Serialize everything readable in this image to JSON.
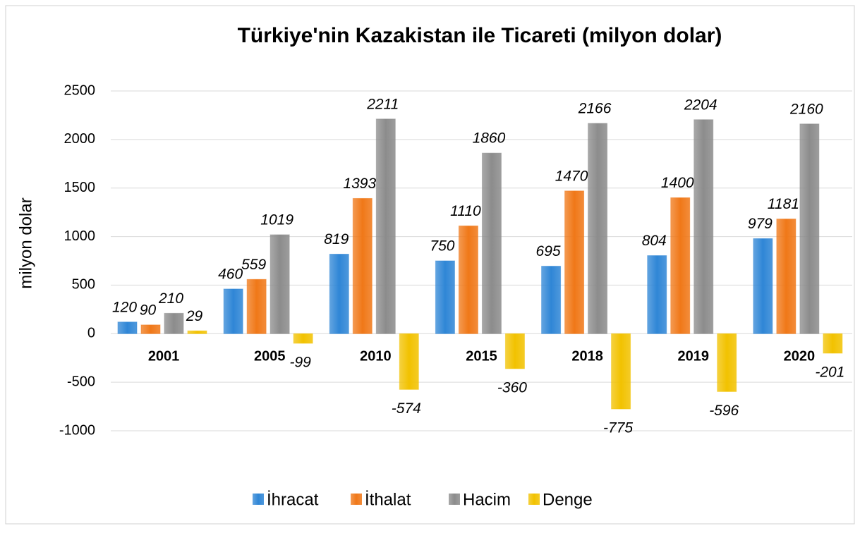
{
  "chart_data": {
    "type": "bar",
    "title": "Türkiye'nin Kazakistan ile Ticareti (milyon dolar)",
    "y_label": "milyon dolar",
    "categories": [
      "2001",
      "2005",
      "2010",
      "2015",
      "2018",
      "2019",
      "2020"
    ],
    "series": [
      {
        "name": "İhracat",
        "color": "#2f86d6",
        "values": [
          120,
          460,
          819,
          750,
          695,
          804,
          979
        ]
      },
      {
        "name": "İthalat",
        "color": "#f07818",
        "values": [
          90,
          559,
          1393,
          1110,
          1470,
          1400,
          1181
        ]
      },
      {
        "name": "Hacim",
        "color": "#8c8c8c",
        "values": [
          210,
          1019,
          2211,
          1860,
          2166,
          2204,
          2160
        ]
      },
      {
        "name": "Denge",
        "color": "#f2c200",
        "values": [
          29,
          -99,
          -574,
          -360,
          -775,
          -596,
          -201
        ]
      }
    ],
    "ylim": [
      -1000,
      2500
    ],
    "yticks": [
      -1000,
      -500,
      0,
      500,
      1000,
      1500,
      2000,
      2500
    ],
    "grid": true,
    "legend": "bottom"
  }
}
